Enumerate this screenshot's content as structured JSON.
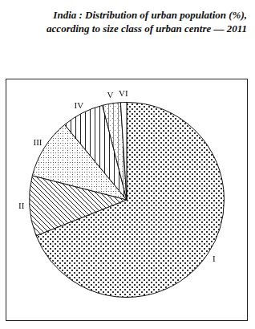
{
  "chart_data": {
    "type": "pie",
    "title": "India : Distribution of urban population (%), according to size class of urban centre — 2011",
    "categories": [
      "I",
      "II",
      "III",
      "IV",
      "V",
      "VI"
    ],
    "values": [
      69,
      10,
      10,
      7,
      3,
      1
    ],
    "colors": [
      "#333333",
      "#222222",
      "#555555",
      "#222222",
      "#888888",
      "#ffffff"
    ],
    "legend": false
  }
}
